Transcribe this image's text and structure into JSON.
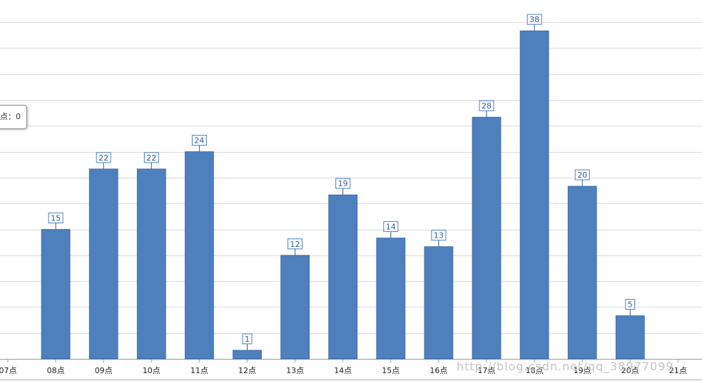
{
  "chart_data": {
    "type": "bar",
    "categories": [
      "07点",
      "08点",
      "09点",
      "10点",
      "11点",
      "12点",
      "13点",
      "14点",
      "15点",
      "16点",
      "17点",
      "18点",
      "19点",
      "20点",
      "21点"
    ],
    "values": [
      0,
      15,
      22,
      22,
      24,
      1,
      12,
      19,
      14,
      13,
      28,
      38,
      20,
      5,
      0
    ],
    "ylim": [
      0,
      39
    ],
    "grid": true,
    "title": "",
    "xlabel": "",
    "ylabel": "",
    "bar_color": "#4e80bd",
    "label_color": "#2f5f96",
    "grid_color": "#dcdcdc",
    "axis_color": "#9a9a9a"
  },
  "tooltip": {
    "text": "点：0"
  },
  "watermark": {
    "text": "http://blog.csdn.net/qq_38977099"
  }
}
